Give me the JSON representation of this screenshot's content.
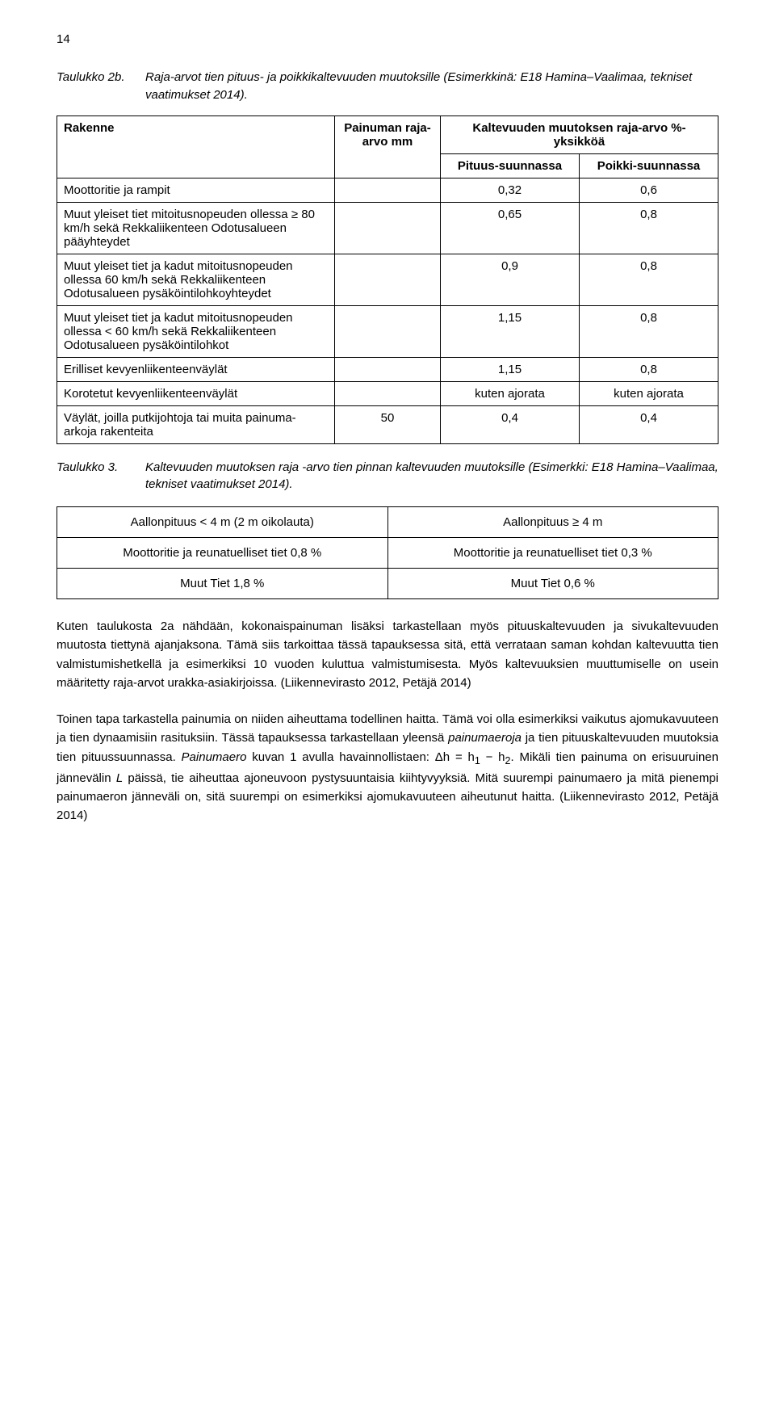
{
  "page_number": "14",
  "caption_2b": {
    "label": "Taulukko 2b.",
    "text": "Raja-arvot tien pituus- ja poikkikaltevuuden muutoksille (Esimerkkinä: E18 Hamina–Vaalimaa, tekniset vaatimukset 2014)."
  },
  "table1": {
    "head": {
      "rakenne": "Rakenne",
      "painuma": "Painuman raja-arvo mm",
      "kaltevuus": "Kaltevuuden muutoksen raja-arvo %-yksikköä",
      "pituus": "Pituus-suunnassa",
      "poikki": "Poikki-suunnassa"
    },
    "rows": [
      {
        "c0": "Moottoritie ja rampit",
        "c1": "",
        "c2": "0,32",
        "c3": "0,6"
      },
      {
        "c0": "Muut yleiset tiet mitoitusnopeuden ollessa ≥ 80 km/h sekä Rekkaliikenteen Odotusalueen pääyhteydet",
        "c1": "",
        "c2": "0,65",
        "c3": "0,8"
      },
      {
        "c0": "Muut yleiset  tiet ja kadut mitoitusnopeuden ollessa 60 km/h sekä Rekkaliikenteen Odotusalueen pysäköintilohkoyhteydet",
        "c1": "",
        "c2": "0,9",
        "c3": "0,8"
      },
      {
        "c0": "Muut yleiset tiet ja kadut mitoitusnopeuden ollessa < 60 km/h sekä Rekkaliikenteen Odotusalueen pysäköintilohkot",
        "c1": "",
        "c2": "1,15",
        "c3": "0,8"
      },
      {
        "c0": "Erilliset kevyenliikenteenväylät",
        "c1": "",
        "c2": "1,15",
        "c3": "0,8"
      },
      {
        "c0": "Korotetut kevyenliikenteenväylät",
        "c1": "",
        "c2": "kuten ajorata",
        "c3": "kuten ajorata"
      },
      {
        "c0": "Väylät, joilla putkijohtoja tai muita painuma-arkoja rakenteita",
        "c1": "50",
        "c2": "0,4",
        "c3": "0,4"
      }
    ]
  },
  "caption_3": {
    "label": "Taulukko 3.",
    "text": "Kaltevuuden muutoksen raja -arvo tien pinnan kaltevuuden muutoksille (Esimerkki: E18 Hamina–Vaalimaa, tekniset vaatimukset 2014)."
  },
  "table2": {
    "r0": {
      "c0": "Aallonpituus < 4 m (2 m oikolauta)",
      "c1": "Aallonpituus ≥ 4 m"
    },
    "r1": {
      "c0": "Moottoritie ja reunatuelliset tiet 0,8 %",
      "c1": "Moottoritie ja reunatuelliset tiet 0,3 %"
    },
    "r2": {
      "c0": "Muut Tiet 1,8 %",
      "c1": "Muut Tiet 0,6 %"
    }
  },
  "para1": "Kuten taulukosta 2a nähdään, kokonaispainuman lisäksi tarkastellaan myös pituuskaltevuuden ja sivukaltevuuden muutosta tiettynä ajanjaksona. Tämä siis tarkoittaa tässä tapauksessa sitä, että verrataan saman kohdan kaltevuutta tien valmistumishetkellä ja esimerkiksi 10 vuoden kuluttua valmistumisesta. Myös kaltevuuksien muuttumiselle on usein määritetty raja-arvot urakka-asiakirjoissa. (Liikennevirasto 2012, Petäjä 2014)",
  "para2_a": "Toinen tapa tarkastella painumia on niiden aiheuttama todellinen haitta. Tämä voi olla esimerkiksi vaikutus ajomukavuuteen ja tien dynaamisiin rasituksiin. Tässä tapauksessa tarkastellaan yleensä ",
  "para2_ital1": "painumaeroja",
  "para2_b": " ja tien pituuskaltevuuden muutoksia tien pituussuunnassa. ",
  "para2_ital2": "Painumaero",
  "para2_c": " kuvan 1 avulla havainnollistaen: Δh = h",
  "para2_sub1": "1",
  "para2_d": " − h",
  "para2_sub2": "2",
  "para2_e": ". Mikäli tien painuma on erisuuruinen jännevälin ",
  "para2_ital3": "L",
  "para2_f": " päissä, tie aiheuttaa ajoneuvoon pystysuuntaisia kiihtyvyyksiä. Mitä suurempi painumaero ja mitä pienempi painumaeron jänneväli on, sitä suurempi on esimerkiksi ajomukavuuteen aiheutunut haitta. (Liikennevirasto 2012, Petäjä 2014)"
}
